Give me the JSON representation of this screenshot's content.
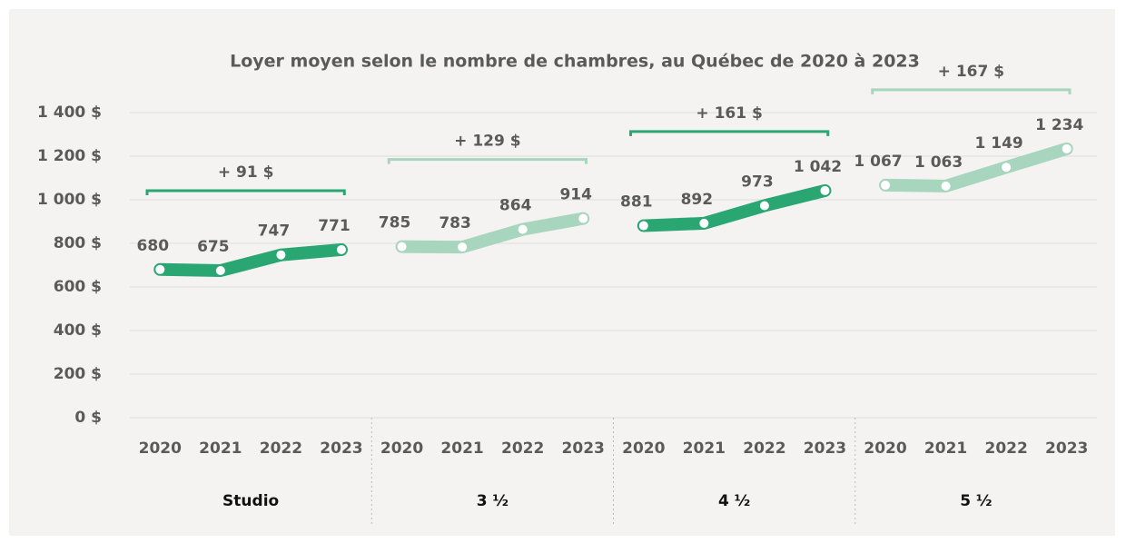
{
  "chart_data": {
    "type": "line",
    "title": "Loyer moyen selon le nombre de chambres, au Québec de 2020 à 2023",
    "categories": [
      "2020",
      "2021",
      "2022",
      "2023"
    ],
    "series": [
      {
        "name": "Studio",
        "color": "#2aa673",
        "values": [
          680,
          675,
          747,
          771
        ],
        "value_labels": [
          "680",
          "675",
          "747",
          "771"
        ],
        "annotation": "+ 91 $"
      },
      {
        "name": "3 ½",
        "color": "#a7d5bd",
        "values": [
          785,
          783,
          864,
          914
        ],
        "value_labels": [
          "785",
          "783",
          "864",
          "914"
        ],
        "annotation": "+ 129 $"
      },
      {
        "name": "4 ½",
        "color": "#2aa673",
        "values": [
          881,
          892,
          973,
          1042
        ],
        "value_labels": [
          "881",
          "892",
          "973",
          "1 042"
        ],
        "annotation": "+ 161 $"
      },
      {
        "name": "5 ½",
        "color": "#a7d5bd",
        "values": [
          1067,
          1063,
          1149,
          1234
        ],
        "value_labels": [
          "1 067",
          "1 063",
          "1 149",
          "1 234"
        ],
        "annotation": "+ 167 $"
      }
    ],
    "ylim": [
      0,
      1400
    ],
    "yticks": [
      {
        "value": 0,
        "label": "0 $"
      },
      {
        "value": 200,
        "label": "200 $"
      },
      {
        "value": 400,
        "label": "400 $"
      },
      {
        "value": 600,
        "label": "600 $"
      },
      {
        "value": 800,
        "label": "800 $"
      },
      {
        "value": 1000,
        "label": "1 000 $"
      },
      {
        "value": 1200,
        "label": "1 200 $"
      },
      {
        "value": 1400,
        "label": "1 400 $"
      }
    ],
    "grid": true
  }
}
